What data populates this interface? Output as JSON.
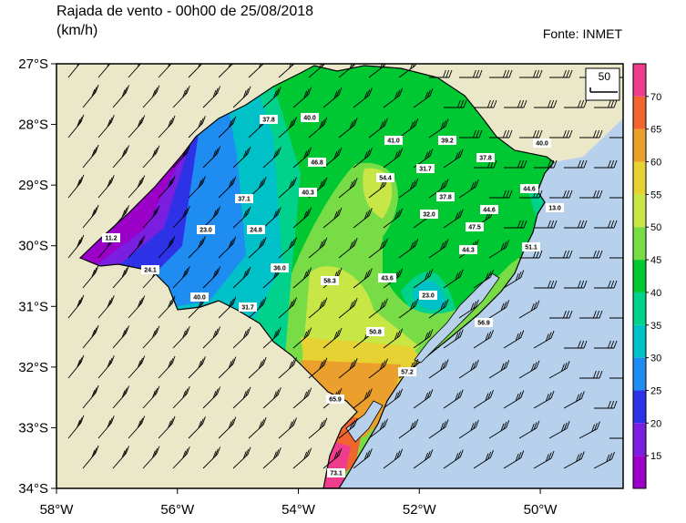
{
  "title": [
    "Rajada de vento - 00h00 de 25/08/2018",
    "(km/h)"
  ],
  "source": "Fonte: INMET",
  "lon_range": [
    -58,
    -48.63
  ],
  "lat_range": [
    -34,
    -27
  ],
  "lat_ticks": [
    {
      "value": -27,
      "label": "27°S"
    },
    {
      "value": -28,
      "label": "28°S"
    },
    {
      "value": -29,
      "label": "29°S"
    },
    {
      "value": -30,
      "label": "30°S"
    },
    {
      "value": -31,
      "label": "31°S"
    },
    {
      "value": -32,
      "label": "32°S"
    },
    {
      "value": -33,
      "label": "33°S"
    },
    {
      "value": -34,
      "label": "34°S"
    }
  ],
  "lon_ticks": [
    {
      "value": -58,
      "label": "58°W"
    },
    {
      "value": -56,
      "label": "56°W"
    },
    {
      "value": -54,
      "label": "54°W"
    },
    {
      "value": -52,
      "label": "52°W"
    },
    {
      "value": -50,
      "label": "50°W"
    }
  ],
  "barb_legend": "50",
  "colorbar": {
    "range": [
      10,
      75
    ],
    "ticks": [
      15,
      20,
      25,
      30,
      35,
      40,
      45,
      50,
      55,
      60,
      65,
      70
    ],
    "colors": [
      "#9a00c8",
      "#7a1ee0",
      "#2d32e6",
      "#1e8cf0",
      "#00c0c8",
      "#00d28c",
      "#00c832",
      "#78dc46",
      "#c8e646",
      "#e6d232",
      "#eba02d",
      "#f0642d",
      "#f03c8c"
    ]
  },
  "stations": [
    "37.8",
    "40.0",
    "41.0",
    "39.2",
    "40.0",
    "46.8",
    "31.7",
    "37.8",
    "54.4",
    "37.1",
    "40.3",
    "37.8",
    "44.6",
    "44.6",
    "13.0",
    "32.0",
    "11.2",
    "23.0",
    "24.8",
    "47.5",
    "44.3",
    "51.1",
    "24.1",
    "36.0",
    "58.3",
    "43.6",
    "23.0",
    "40.0",
    "31.7",
    "56.9",
    "50.8",
    "57.2",
    "65.9",
    "73.1"
  ]
}
